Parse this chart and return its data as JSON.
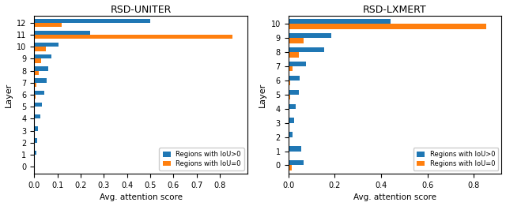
{
  "uniter": {
    "title": "RSD-UNITER",
    "layers": [
      0,
      1,
      2,
      3,
      4,
      5,
      6,
      7,
      8,
      9,
      10,
      11,
      12
    ],
    "iou_gt0": [
      0.003,
      0.008,
      0.012,
      0.018,
      0.025,
      0.033,
      0.043,
      0.055,
      0.062,
      0.075,
      0.105,
      0.24,
      0.5
    ],
    "iou_eq0": [
      0.0,
      0.0,
      0.0,
      0.002,
      0.003,
      0.003,
      0.007,
      0.008,
      0.02,
      0.03,
      0.05,
      0.855,
      0.12
    ],
    "xlim": [
      0.0,
      0.92
    ],
    "xticks": [
      0.0,
      0.1,
      0.2,
      0.3,
      0.4,
      0.5,
      0.6,
      0.7,
      0.8
    ]
  },
  "lxmert": {
    "title": "RSD-LXMERT",
    "layers": [
      0,
      1,
      2,
      3,
      4,
      5,
      6,
      7,
      8,
      9,
      10
    ],
    "iou_gt0": [
      0.065,
      0.055,
      0.018,
      0.025,
      0.033,
      0.045,
      0.05,
      0.075,
      0.155,
      0.185,
      0.44
    ],
    "iou_eq0": [
      0.015,
      0.003,
      0.0,
      0.0,
      0.003,
      0.007,
      0.008,
      0.02,
      0.045,
      0.065,
      0.855
    ],
    "xlim": [
      0.0,
      0.92
    ],
    "xticks": [
      0.0,
      0.2,
      0.4,
      0.6,
      0.8
    ]
  },
  "color_gt0": "#1f77b4",
  "color_eq0": "#ff7f0e",
  "xlabel": "Avg. attention score",
  "ylabel": "Layer",
  "legend_gt0": "Regions with IoU>0",
  "legend_eq0": "Regions with IoU=0",
  "bar_height": 0.35
}
